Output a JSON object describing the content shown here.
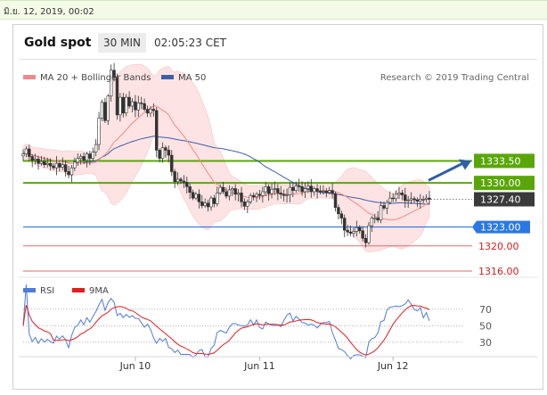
{
  "header": {
    "date": "มิ.ย. 12, 2019, 00:02",
    "symbol": "Gold spot",
    "interval": "30 MIN",
    "time": "02:05:23 CET",
    "credit": "Research © 2019 Trading Central"
  },
  "legend": {
    "ma20": {
      "label": "MA 20 + Bollinger Bands",
      "color": "#f08a8a"
    },
    "ma50": {
      "label": "MA 50",
      "color": "#3d5fa8"
    }
  },
  "levels": [
    {
      "value": 1333.5,
      "label": "1333.50",
      "style": "green-box"
    },
    {
      "value": 1330.0,
      "label": "1330.00",
      "style": "green-box"
    },
    {
      "value": 1327.4,
      "label": "1327.40",
      "style": "current-box"
    },
    {
      "value": 1323.0,
      "label": "1323.00",
      "style": "blue-box"
    },
    {
      "value": 1320.0,
      "label": "1320.00",
      "style": "red-text"
    },
    {
      "value": 1316.0,
      "label": "1316.00",
      "style": "red-text"
    }
  ],
  "chart_data": [
    {
      "type": "candlestick",
      "title": "Gold spot 30 MIN",
      "x_ticks": [
        "Jun 10",
        "Jun 11",
        "Jun 12"
      ],
      "ylim": [
        1316.0,
        1349.0
      ],
      "series": [
        {
          "name": "MA 20 + Bollinger Bands",
          "color": "#f08a8a"
        },
        {
          "name": "MA 50",
          "color": "#3d5fa8"
        }
      ],
      "close": [
        1334.6,
        1335.4,
        1334.2,
        1333.6,
        1333.8,
        1333.1,
        1333.4,
        1332.9,
        1333.1,
        1332.7,
        1332.4,
        1333.1,
        1332.5,
        1332.9,
        1331.8,
        1331.3,
        1332.4,
        1333.3,
        1333.9,
        1334.2,
        1333.6,
        1334.6,
        1333.9,
        1334.9,
        1336.1,
        1340.3,
        1342.8,
        1339.9,
        1343.8,
        1347.9,
        1346.7,
        1340.8,
        1343.6,
        1341.1,
        1343.6,
        1342.2,
        1342.9,
        1341.6,
        1342.7,
        1342.6,
        1341.7,
        1341.1,
        1341.7,
        1341.5,
        1335.2,
        1333.9,
        1335.6,
        1335.2,
        1334.4,
        1331.8,
        1330.2,
        1330.6,
        1330.3,
        1330.1,
        1329.4,
        1328.5,
        1327.6,
        1328.2,
        1327.0,
        1326.4,
        1326.8,
        1326.2,
        1327.6,
        1326.7,
        1328.4,
        1329.3,
        1328.6,
        1327.9,
        1328.9,
        1329.1,
        1328.2,
        1328.4,
        1327.0,
        1326.3,
        1327.0,
        1328.0,
        1327.8,
        1328.2,
        1328.0,
        1328.6,
        1329.4,
        1328.3,
        1329.0,
        1329.1,
        1328.4,
        1328.2,
        1328.0,
        1328.1,
        1329.3,
        1328.8,
        1329.5,
        1329.4,
        1328.6,
        1329.1,
        1329.5,
        1328.6,
        1329.1,
        1328.7,
        1328.6,
        1328.7,
        1328.5,
        1328.8,
        1328.3,
        1326.1,
        1325.1,
        1324.4,
        1322.5,
        1322.2,
        1322.0,
        1322.3,
        1322.9,
        1322.4,
        1321.2,
        1320.5,
        1323.2,
        1324.4,
        1324.4,
        1324.1,
        1326.4,
        1326.0,
        1326.9,
        1327.6,
        1327.5,
        1328.2,
        1328.4,
        1328.1,
        1327.2,
        1327.3,
        1327.5,
        1327.3,
        1327.1,
        1327.4,
        1327.4,
        1327.6,
        1327.4
      ]
    },
    {
      "type": "line",
      "title": "RSI",
      "x_ticks": [
        "Jun 10",
        "Jun 11",
        "Jun 12"
      ],
      "y_ticks": [
        70,
        50,
        30
      ],
      "ylim": [
        20,
        85
      ],
      "series": [
        {
          "name": "RSI",
          "color": "#4f7bd9"
        },
        {
          "name": "9MA",
          "color": "#e11d1d"
        }
      ]
    }
  ]
}
